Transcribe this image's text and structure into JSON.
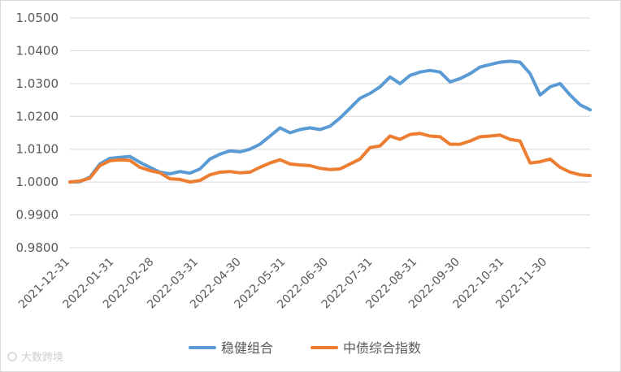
{
  "chart_data": {
    "type": "line",
    "title": "",
    "xlabel": "",
    "ylabel": "",
    "ylim": [
      0.98,
      1.05
    ],
    "y_ticks": [
      "0.9800",
      "0.9900",
      "1.0000",
      "1.0100",
      "1.0200",
      "1.0300",
      "1.0400",
      "1.0500"
    ],
    "x_ticks": [
      "2021-12-31",
      "2022-01-31",
      "2022-02-28",
      "2022-03-31",
      "2022-04-30",
      "2022-05-31",
      "2022-06-30",
      "2022-07-31",
      "2022-08-31",
      "2022-09-30",
      "2022-10-31",
      "2022-11-30"
    ],
    "grid": "horizontal",
    "legend_position": "bottom",
    "x": [
      "2021-12-31",
      "2022-01-07",
      "2022-01-14",
      "2022-01-21",
      "2022-01-28",
      "2022-02-04",
      "2022-02-11",
      "2022-02-18",
      "2022-02-25",
      "2022-03-04",
      "2022-03-11",
      "2022-03-18",
      "2022-03-25",
      "2022-04-01",
      "2022-04-08",
      "2022-04-15",
      "2022-04-22",
      "2022-04-29",
      "2022-05-06",
      "2022-05-13",
      "2022-05-20",
      "2022-05-27",
      "2022-06-03",
      "2022-06-10",
      "2022-06-17",
      "2022-06-24",
      "2022-07-01",
      "2022-07-08",
      "2022-07-15",
      "2022-07-22",
      "2022-07-29",
      "2022-08-05",
      "2022-08-12",
      "2022-08-19",
      "2022-08-26",
      "2022-09-02",
      "2022-09-09",
      "2022-09-16",
      "2022-09-23",
      "2022-09-30",
      "2022-10-07",
      "2022-10-14",
      "2022-10-21",
      "2022-10-28",
      "2022-11-04",
      "2022-11-11",
      "2022-11-18",
      "2022-11-25",
      "2022-12-02",
      "2022-12-09",
      "2022-12-16",
      "2022-12-23",
      "2022-12-30"
    ],
    "series": [
      {
        "name": "稳健组合",
        "color": "#5B9BD5",
        "values": [
          1.0,
          1.0001,
          1.0015,
          1.0055,
          1.0072,
          1.0075,
          1.0078,
          1.006,
          1.0045,
          1.003,
          1.0025,
          1.0032,
          1.0027,
          1.004,
          1.007,
          1.0085,
          1.0095,
          1.0092,
          1.01,
          1.0115,
          1.014,
          1.0165,
          1.015,
          1.016,
          1.0165,
          1.016,
          1.017,
          1.0195,
          1.0225,
          1.0255,
          1.027,
          1.029,
          1.032,
          1.03,
          1.0325,
          1.0335,
          1.034,
          1.0335,
          1.0305,
          1.0315,
          1.033,
          1.035,
          1.0358,
          1.0365,
          1.0368,
          1.0365,
          1.033,
          1.0265,
          1.029,
          1.03,
          1.0265,
          1.0235,
          1.022
        ]
      },
      {
        "name": "中债综合指数",
        "color": "#ED7D31",
        "values": [
          1.0,
          1.0003,
          1.0012,
          1.005,
          1.0065,
          1.0068,
          1.0066,
          1.0045,
          1.0035,
          1.0028,
          1.001,
          1.0008,
          1.0,
          1.0005,
          1.0022,
          1.003,
          1.0032,
          1.0028,
          1.003,
          1.0045,
          1.0058,
          1.0068,
          1.0055,
          1.0052,
          1.005,
          1.0042,
          1.0038,
          1.004,
          1.0055,
          1.007,
          1.0105,
          1.011,
          1.014,
          1.013,
          1.0145,
          1.0148,
          1.014,
          1.0138,
          1.0115,
          1.0115,
          1.0125,
          1.0138,
          1.014,
          1.0143,
          1.013,
          1.0125,
          1.0058,
          1.0062,
          1.007,
          1.0045,
          1.003,
          1.0022,
          1.002
        ]
      }
    ]
  },
  "watermark": "大数跨境"
}
